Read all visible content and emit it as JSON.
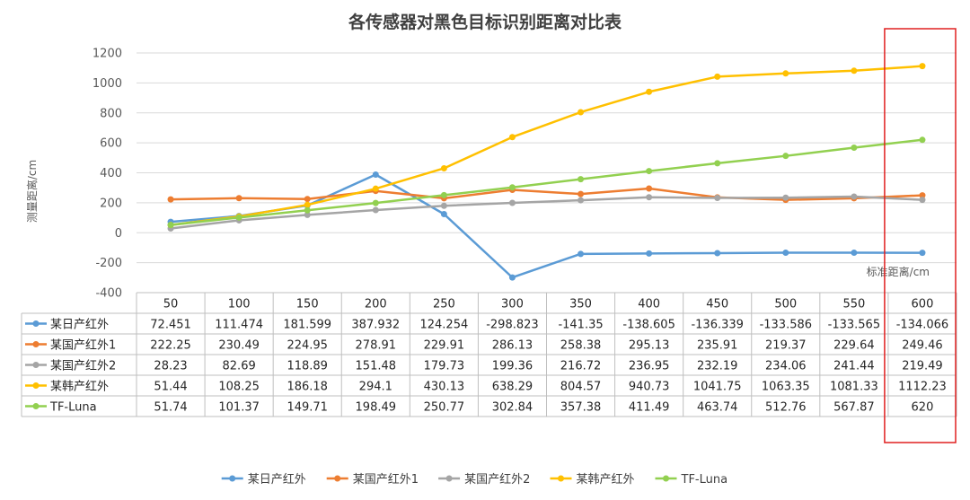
{
  "chart_data": {
    "type": "line",
    "title": "各传感器对黑色目标识别距离对比表",
    "xlabel": "标准距离/cm",
    "ylabel": "测量距离/cm",
    "ylim": [
      -400,
      1200
    ],
    "yticks": [
      -400,
      -200,
      0,
      200,
      400,
      600,
      800,
      1000,
      1200
    ],
    "categories": [
      "50",
      "100",
      "150",
      "200",
      "250",
      "300",
      "350",
      "400",
      "450",
      "500",
      "550",
      "600"
    ],
    "grid": true,
    "legend_position": "bottom",
    "highlight_column": "600",
    "highlight_color": "#e02020",
    "series": [
      {
        "name": "某日产红外",
        "color": "#5b9bd5",
        "values": [
          72.451,
          111.474,
          181.599,
          387.932,
          124.254,
          -298.823,
          -141.35,
          -138.605,
          -136.339,
          -133.586,
          -133.565,
          -134.066
        ],
        "labels": [
          "72.451",
          "111.474",
          "181.599",
          "387.932",
          "124.254",
          "-298.823",
          "-141.35",
          "-138.605",
          "-136.339",
          "-133.586",
          "-133.565",
          "-134.066"
        ]
      },
      {
        "name": "某国产红外1",
        "color": "#ed7d31",
        "values": [
          222.25,
          230.49,
          224.95,
          278.91,
          229.91,
          286.13,
          258.38,
          295.13,
          235.91,
          219.37,
          229.64,
          249.46
        ],
        "labels": [
          "222.25",
          "230.49",
          "224.95",
          "278.91",
          "229.91",
          "286.13",
          "258.38",
          "295.13",
          "235.91",
          "219.37",
          "229.64",
          "249.46"
        ]
      },
      {
        "name": "某国产红外2",
        "color": "#a5a5a5",
        "values": [
          28.23,
          82.69,
          118.89,
          151.48,
          179.73,
          199.36,
          216.72,
          236.95,
          232.19,
          234.06,
          241.44,
          219.49
        ],
        "labels": [
          "28.23",
          "82.69",
          "118.89",
          "151.48",
          "179.73",
          "199.36",
          "216.72",
          "236.95",
          "232.19",
          "234.06",
          "241.44",
          "219.49"
        ]
      },
      {
        "name": "某韩产红外",
        "color": "#ffc000",
        "values": [
          51.44,
          108.25,
          186.18,
          294.1,
          430.13,
          638.29,
          804.57,
          940.73,
          1041.75,
          1063.35,
          1081.33,
          1112.23
        ],
        "labels": [
          "51.44",
          "108.25",
          "186.18",
          "294.1",
          "430.13",
          "638.29",
          "804.57",
          "940.73",
          "1041.75",
          "1063.35",
          "1081.33",
          "1112.23"
        ]
      },
      {
        "name": "TF-Luna",
        "color": "#92d050",
        "values": [
          51.74,
          101.37,
          149.71,
          198.49,
          250.77,
          302.84,
          357.38,
          411.49,
          463.74,
          512.76,
          567.87,
          620
        ],
        "labels": [
          "51.74",
          "101.37",
          "149.71",
          "198.49",
          "250.77",
          "302.84",
          "357.38",
          "411.49",
          "463.74",
          "512.76",
          "567.87",
          "620"
        ]
      }
    ]
  }
}
